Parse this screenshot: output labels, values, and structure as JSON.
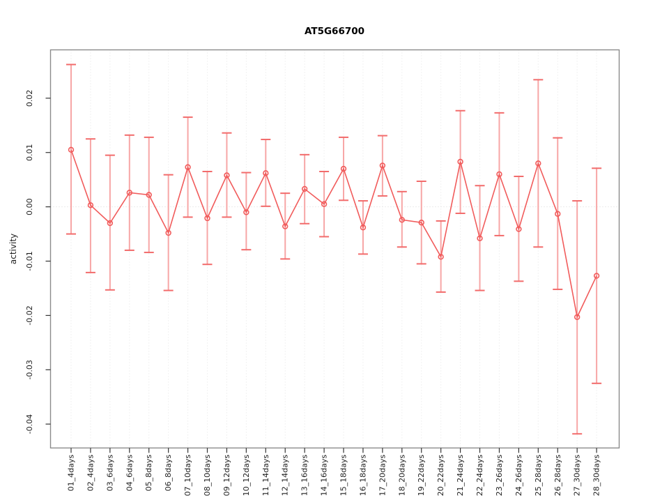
{
  "window": {
    "title": "AT5G66700"
  },
  "chart_data": {
    "type": "line",
    "title": "AT5G66700",
    "xlabel": "",
    "ylabel": "activity",
    "legend": "none",
    "grid": "vertical-dotted",
    "zero_line": true,
    "ylim": [
      -0.0444,
      0.0289
    ],
    "yticks": [
      "-0.04",
      "-0.03",
      "-0.02",
      "-0.01",
      "0.00",
      "0.01",
      "0.02"
    ],
    "categories": [
      "01_4days",
      "02_4days",
      "03_6days",
      "04_6days",
      "05_8days",
      "06_8days",
      "07_10days",
      "08_10days",
      "09_12days",
      "10_12days",
      "11_14days",
      "12_14days",
      "13_16days",
      "14_16days",
      "15_18days",
      "16_18days",
      "17_20days",
      "18_20days",
      "19_22days",
      "20_22days",
      "21_24days",
      "22_24days",
      "23_26days",
      "24_26days",
      "25_28days",
      "26_28days",
      "27_30days",
      "28_30days"
    ],
    "series": [
      {
        "name": "activity",
        "values": [
          0.0105,
          0.0003,
          -0.003,
          0.0026,
          0.0022,
          -0.0048,
          0.0073,
          -0.0021,
          0.0058,
          -0.001,
          0.0062,
          -0.0036,
          0.0033,
          0.0005,
          0.007,
          -0.0038,
          0.0076,
          -0.0024,
          -0.0029,
          -0.0092,
          0.0083,
          -0.0058,
          0.006,
          -0.0041,
          0.008,
          -0.0013,
          -0.0203,
          -0.0127
        ],
        "error_high": [
          0.0262,
          0.0125,
          0.0095,
          0.0132,
          0.0128,
          0.0059,
          0.0165,
          0.0065,
          0.0136,
          0.0063,
          0.0124,
          0.0025,
          0.0096,
          0.0065,
          0.0128,
          0.0011,
          0.0131,
          0.0028,
          0.0047,
          -0.0026,
          0.0177,
          0.0039,
          0.0173,
          0.0056,
          0.0234,
          0.0127,
          0.0011,
          0.0071
        ],
        "error_low": [
          -0.005,
          -0.0121,
          -0.0153,
          -0.008,
          -0.0084,
          -0.0154,
          -0.0019,
          -0.0106,
          -0.0019,
          -0.0079,
          0.0001,
          -0.0096,
          -0.0031,
          -0.0055,
          0.0012,
          -0.0087,
          0.002,
          -0.0074,
          -0.0105,
          -0.0157,
          -0.0012,
          -0.0154,
          -0.0053,
          -0.0137,
          -0.0074,
          -0.0152,
          -0.0418,
          -0.0325
        ]
      }
    ],
    "colors": {
      "line": "#f15b5b",
      "marker": "#f15b5b",
      "error_stem": "#f7a6a6",
      "error_cap": "#f26b6b",
      "grid": "#e4e4e4",
      "zero_line": "#d8d8d8",
      "box": "#8a8a8a",
      "tick": "#333333",
      "text": "#1f1f1f"
    }
  }
}
